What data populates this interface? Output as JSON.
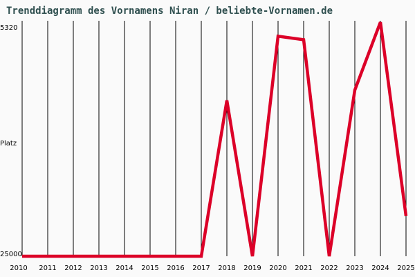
{
  "title": "Trenddiagramm des Vornamens Niran / beliebte-Vornamen.de",
  "chart_data": {
    "type": "line",
    "title": "Trenddiagramm des Vornamens Niran / beliebte-Vornamen.de",
    "xlabel": "",
    "ylabel": "Platz",
    "y_axis_inverted": true,
    "ylim": [
      25000,
      5320
    ],
    "y_ticks": [
      "5320",
      "25000"
    ],
    "grid": "vertical lines at each year",
    "legend": "none",
    "line_color": "#dc0028",
    "categories": [
      "2010",
      "2011",
      "2012",
      "2013",
      "2014",
      "2015",
      "2016",
      "2017",
      "2018",
      "2019",
      "2020",
      "2021",
      "2022",
      "2023",
      "2024",
      "2025"
    ],
    "values": [
      25000,
      25000,
      25000,
      25000,
      25000,
      25000,
      25000,
      25000,
      11900,
      25000,
      6500,
      6800,
      25000,
      11030,
      5320,
      21620
    ]
  },
  "axis": {
    "y_top_label": "5320",
    "y_mid_label": "Platz",
    "y_bottom_label": "25000"
  }
}
